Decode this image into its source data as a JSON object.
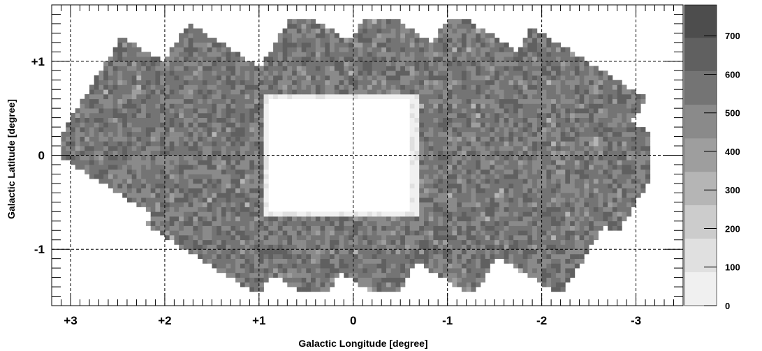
{
  "chart_data": {
    "type": "heatmap",
    "title": "",
    "xlabel": "Galactic Longitude [degree]",
    "ylabel": "Galactic Latitude [degree]",
    "xlim": [
      3.2,
      -3.5
    ],
    "ylim": [
      -1.6,
      1.6
    ],
    "x_ticks": [
      3,
      2,
      1,
      0,
      -1,
      -2,
      -3
    ],
    "x_tick_labels": [
      "+3",
      "+2",
      "+1",
      "0",
      "-1",
      "-2",
      "-3"
    ],
    "y_ticks": [
      1,
      0,
      -1
    ],
    "y_tick_labels": [
      "+1",
      "0",
      "-1"
    ],
    "grid": true,
    "colorbar": {
      "levels": [
        0,
        100,
        200,
        300,
        400,
        500,
        600,
        700
      ],
      "labels": [
        "0",
        "100",
        "200",
        "300",
        "400",
        "500",
        "600",
        "700"
      ],
      "max": 780,
      "colors": [
        "#f0f0f0",
        "#e0e0e0",
        "#cccccc",
        "#b5b5b5",
        "#9e9e9e",
        "#8a8a8a",
        "#747474",
        "#606060",
        "#4d4d4d"
      ]
    },
    "description_regions": {
      "coverage_typical_level": 650,
      "hole_level": 0
    }
  }
}
